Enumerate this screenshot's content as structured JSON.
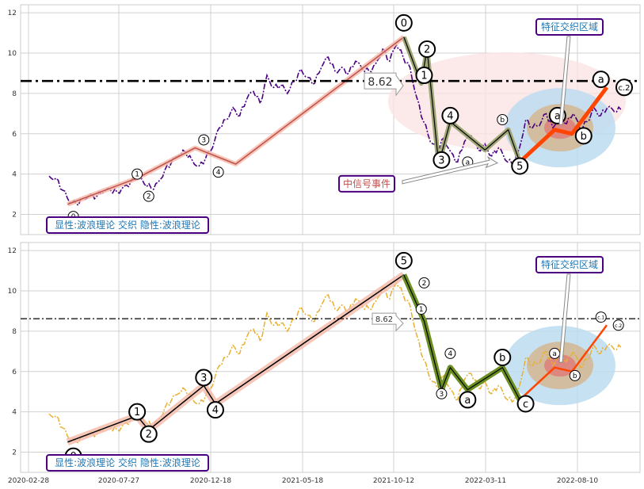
{
  "chart_data": [
    {
      "type": "line",
      "panel": "top",
      "ylim": [
        1,
        12.4
      ],
      "yticks": [
        2,
        4,
        6,
        8,
        10,
        12
      ],
      "grid": true,
      "reference_line": {
        "value": 8.62,
        "style": "dash-dot",
        "label": "8.62"
      },
      "series": [
        {
          "values": [
            3.9,
            3.8,
            3.2,
            2.6,
            2.5,
            2.8,
            3.0,
            2.9,
            3.1,
            3.2,
            3.1,
            3.4,
            3.6,
            3.9,
            3.5,
            3.3,
            3.6,
            4.2,
            4.6,
            4.9,
            5.1,
            4.7,
            4.4,
            4.8,
            5.3,
            6.3,
            6.7,
            7.3,
            6.9,
            7.7,
            8.1,
            7.5,
            8.9,
            8.3,
            8.4,
            8.0,
            8.6,
            9.2,
            8.8,
            8.5,
            9.3,
            9.8,
            9.1,
            9.3,
            9.0,
            9.6,
            9.2,
            9.1,
            9.5,
            10.2,
            9.6,
            10.4,
            9.8,
            9.3,
            7.8,
            6.6,
            5.6,
            5.2,
            5.8,
            5.1,
            4.6,
            5.6,
            5.9,
            5.2,
            5.5,
            4.9,
            5.3,
            4.7,
            4.5,
            5.2,
            6.7,
            6.3,
            6.4,
            7.0,
            6.3,
            7.1,
            6.5,
            7.0,
            6.2,
            6.6,
            7.3,
            6.9,
            7.3,
            7.1,
            7.2
          ]
        }
      ],
      "waves": [
        {
          "points": [
            [
              0.04,
              2.5
            ],
            [
              0.16,
              3.8
            ],
            [
              0.26,
              5.3
            ],
            [
              0.33,
              4.5
            ],
            [
              0.62,
              10.8
            ]
          ],
          "style": "primary-trend"
        },
        {
          "points": [
            [
              0.62,
              10.8
            ],
            [
              0.65,
              8.5
            ],
            [
              0.66,
              10.2
            ],
            [
              0.68,
              4.5
            ],
            [
              0.7,
              6.6
            ],
            [
              0.76,
              5.2
            ],
            [
              0.8,
              6.2
            ],
            [
              0.82,
              4.6
            ]
          ],
          "style": "correction"
        },
        {
          "points": [
            [
              0.82,
              4.6
            ],
            [
              0.88,
              6.2
            ],
            [
              0.91,
              6.0
            ],
            [
              0.97,
              8.3
            ]
          ],
          "style": "projection"
        }
      ],
      "wave_labels": [
        {
          "t": 0.05,
          "v": 1.9,
          "text": "0",
          "size": "small"
        },
        {
          "t": 0.16,
          "v": 4.0,
          "text": "1",
          "size": "small"
        },
        {
          "t": 0.18,
          "v": 2.9,
          "text": "2",
          "size": "small"
        },
        {
          "t": 0.275,
          "v": 5.7,
          "text": "3",
          "size": "small"
        },
        {
          "t": 0.3,
          "v": 4.1,
          "text": "4",
          "size": "small"
        },
        {
          "t": 0.62,
          "v": 11.5,
          "text": "0",
          "size": "large"
        },
        {
          "t": 0.66,
          "v": 10.2,
          "text": "2",
          "size": "large"
        },
        {
          "t": 0.655,
          "v": 8.9,
          "text": "1",
          "size": "large"
        },
        {
          "t": 0.685,
          "v": 4.7,
          "text": "3",
          "size": "large"
        },
        {
          "t": 0.7,
          "v": 6.9,
          "text": "4",
          "size": "large"
        },
        {
          "t": 0.73,
          "v": 4.6,
          "text": "a",
          "size": "small"
        },
        {
          "t": 0.79,
          "v": 6.7,
          "text": "b",
          "size": "small"
        },
        {
          "t": 0.82,
          "v": 4.4,
          "text": "5",
          "size": "large"
        },
        {
          "t": 0.885,
          "v": 6.9,
          "text": "a",
          "size": "large"
        },
        {
          "t": 0.93,
          "v": 5.9,
          "text": "b",
          "size": "large"
        },
        {
          "t": 0.96,
          "v": 8.7,
          "text": "a",
          "size": "large"
        },
        {
          "t": 1.0,
          "v": 8.3,
          "text": "c.2",
          "size": "large"
        }
      ],
      "annotations": [
        {
          "text": "特征交织区域"
        },
        {
          "text": "中信号事件"
        }
      ],
      "legend_text": "显性:波浪理论 交织 隐性:波浪理论"
    },
    {
      "type": "line",
      "panel": "bottom",
      "ylim": [
        1,
        12.4
      ],
      "yticks": [
        2,
        4,
        6,
        8,
        10,
        12
      ],
      "grid": true,
      "reference_line": {
        "value": 8.62,
        "style": "dash-dot",
        "label": "8.62"
      },
      "x_tick_labels": [
        "2020-02-28",
        "2020-07-27",
        "2020-12-18",
        "2021-05-18",
        "2021-10-12",
        "2022-03-11",
        "2022-08-10"
      ],
      "series": [
        {
          "values": [
            3.9,
            3.8,
            3.2,
            2.6,
            2.5,
            2.8,
            3.0,
            2.9,
            3.1,
            3.2,
            3.1,
            3.4,
            3.6,
            3.9,
            3.5,
            3.3,
            3.6,
            4.2,
            4.6,
            4.9,
            5.1,
            4.7,
            4.4,
            4.8,
            5.3,
            6.3,
            6.7,
            7.3,
            6.9,
            7.7,
            8.1,
            7.5,
            8.9,
            8.3,
            8.4,
            8.0,
            8.6,
            9.2,
            8.8,
            8.5,
            9.3,
            9.8,
            9.1,
            9.3,
            9.0,
            9.6,
            9.2,
            9.1,
            9.5,
            10.2,
            9.6,
            10.4,
            9.8,
            9.3,
            7.8,
            6.6,
            5.6,
            5.2,
            5.8,
            5.1,
            4.6,
            5.6,
            5.9,
            5.2,
            5.5,
            4.9,
            5.3,
            4.7,
            4.5,
            5.2,
            6.7,
            6.3,
            6.4,
            7.0,
            6.3,
            7.1,
            6.5,
            7.0,
            6.2,
            6.6,
            7.3,
            6.9,
            7.3,
            7.1,
            7.2
          ]
        }
      ],
      "waves": [
        {
          "points": [
            [
              0.04,
              2.5
            ],
            [
              0.16,
              3.8
            ],
            [
              0.18,
              3.1
            ],
            [
              0.275,
              5.3
            ],
            [
              0.295,
              4.4
            ],
            [
              0.62,
              10.8
            ]
          ],
          "style": "primary-trend"
        },
        {
          "points": [
            [
              0.62,
              10.8
            ],
            [
              0.655,
              8.5
            ],
            [
              0.685,
              5.1
            ],
            [
              0.7,
              6.2
            ],
            [
              0.73,
              5.1
            ],
            [
              0.79,
              6.2
            ],
            [
              0.82,
              4.6
            ]
          ],
          "style": "correction"
        },
        {
          "points": [
            [
              0.82,
              4.6
            ],
            [
              0.88,
              6.2
            ],
            [
              0.91,
              6.0
            ],
            [
              0.97,
              8.3
            ]
          ],
          "style": "projection"
        }
      ],
      "wave_labels": [
        {
          "t": 0.05,
          "v": 1.8,
          "text": "0",
          "size": "large"
        },
        {
          "t": 0.16,
          "v": 4.0,
          "text": "1",
          "size": "large"
        },
        {
          "t": 0.18,
          "v": 2.9,
          "text": "2",
          "size": "large"
        },
        {
          "t": 0.275,
          "v": 5.7,
          "text": "3",
          "size": "large"
        },
        {
          "t": 0.295,
          "v": 4.1,
          "text": "4",
          "size": "large"
        },
        {
          "t": 0.62,
          "v": 11.5,
          "text": "5",
          "size": "large"
        },
        {
          "t": 0.655,
          "v": 10.4,
          "text": "2",
          "size": "small"
        },
        {
          "t": 0.65,
          "v": 9.1,
          "text": "1",
          "size": "small"
        },
        {
          "t": 0.685,
          "v": 4.9,
          "text": "3",
          "size": "small"
        },
        {
          "t": 0.7,
          "v": 6.9,
          "text": "4",
          "size": "small"
        },
        {
          "t": 0.73,
          "v": 4.6,
          "text": "a",
          "size": "large"
        },
        {
          "t": 0.79,
          "v": 6.7,
          "text": "b",
          "size": "large"
        },
        {
          "t": 0.83,
          "v": 4.4,
          "text": "c",
          "size": "large"
        },
        {
          "t": 0.88,
          "v": 6.9,
          "text": "a",
          "size": "small"
        },
        {
          "t": 0.915,
          "v": 5.8,
          "text": "b",
          "size": "small"
        },
        {
          "t": 0.96,
          "v": 8.7,
          "text": "c.1",
          "size": "small"
        },
        {
          "t": 0.99,
          "v": 8.3,
          "text": "c.2",
          "size": "small"
        }
      ],
      "annotations": [
        {
          "text": "特征交织区域"
        }
      ],
      "legend_text": "显性:波浪理论 交织 隐性:波浪理论"
    }
  ],
  "colors": {
    "top_series": "#4b0082",
    "bottom_series": "#e8b030",
    "trend_line": "#c0504d",
    "trend_glow": "#f4b8a8",
    "correction_top": "#a0a878",
    "correction_bottom": "#6b8e23",
    "projection": "#ff4500",
    "ellipse_blue": "#bcdcf0",
    "ellipse_tan": "#d4b48c",
    "ellipse_red": "#e07070",
    "ellipse_pink": "#fbe4e4",
    "grid": "#d0d0d0",
    "frame": "#cccccc"
  }
}
